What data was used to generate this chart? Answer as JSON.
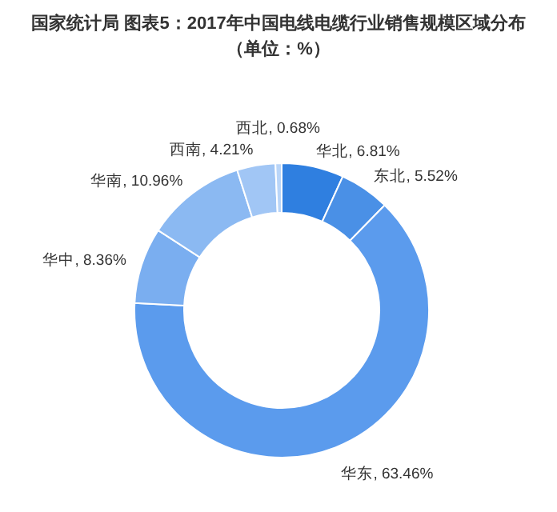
{
  "chart_data": {
    "type": "donut",
    "title": "国家统计局 图表5：2017年中国电线电缆行业销售规模区域分布",
    "subtitle": "（单位：%）",
    "categories": [
      "华北",
      "东北",
      "华东",
      "华中",
      "华南",
      "西南",
      "西北"
    ],
    "values": [
      6.81,
      5.52,
      63.46,
      8.36,
      10.96,
      4.21,
      0.68
    ],
    "value_labels": [
      "6.81%",
      "5.52%",
      "63.46%",
      "8.36%",
      "10.96%",
      "4.21%",
      "0.68%"
    ],
    "colors": [
      "#2f7fe0",
      "#4a90e6",
      "#5b9bed",
      "#7aaef0",
      "#8bb9f2",
      "#a1c6f5",
      "#b9d5f8"
    ]
  }
}
